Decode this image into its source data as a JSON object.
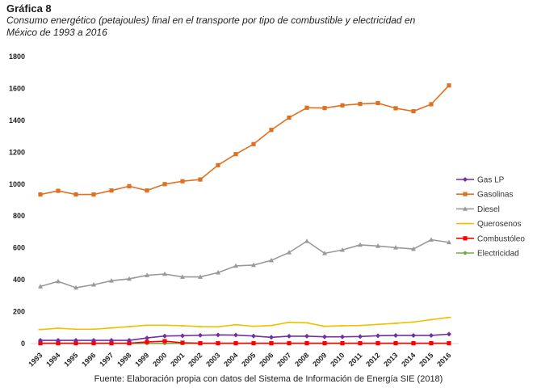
{
  "figure": {
    "label": "Gráfica 8",
    "subtitle_line1": "Consumo energético (petajoules) final en el transporte por tipo de combustible y electricidad en",
    "subtitle_line2": "México de 1993 a 2016",
    "source": "Fuente: Elaboración propia con datos del Sistema de Información de Energía SIE (2018)"
  },
  "chart_data": {
    "type": "line",
    "title": "Consumo energético (petajoules) final en el transporte por tipo de combustible y electricidad en México de 1993 a 2016",
    "xlabel": "",
    "ylabel": "",
    "ylim": [
      0,
      1800
    ],
    "yticks": [
      "0",
      "200",
      "400",
      "600",
      "800",
      "1000",
      "1200",
      "1400",
      "1600",
      "1800"
    ],
    "grid": false,
    "legend_position": "right",
    "categories": [
      "1993",
      "1994",
      "1995",
      "1996",
      "1997",
      "1998",
      "1999",
      "2000",
      "2001",
      "2002",
      "2003",
      "2004",
      "2005",
      "2006",
      "2007",
      "2008",
      "2009",
      "2010",
      "2011",
      "2012",
      "2013",
      "2014",
      "2015",
      "2016"
    ],
    "series": [
      {
        "name": "Gas LP",
        "color": "#7030a0",
        "marker": "diamond",
        "values": [
          20,
          20,
          20,
          20,
          20,
          20,
          35,
          47,
          49,
          52,
          54,
          53,
          47,
          39,
          46,
          46,
          42,
          42,
          44,
          49,
          51,
          51,
          51,
          59
        ]
      },
      {
        "name": "Gasolinas",
        "color": "#e07020",
        "marker": "square",
        "values": [
          935,
          958,
          935,
          935,
          960,
          987,
          960,
          1000,
          1018,
          1029,
          1119,
          1188,
          1251,
          1340,
          1417,
          1479,
          1477,
          1494,
          1503,
          1508,
          1476,
          1457,
          1501,
          1619
        ]
      },
      {
        "name": "Diesel",
        "color": "#999999",
        "marker": "triangle",
        "values": [
          358,
          390,
          350,
          369,
          394,
          406,
          428,
          436,
          418,
          418,
          445,
          487,
          492,
          522,
          571,
          642,
          566,
          587,
          619,
          612,
          602,
          593,
          651,
          635
        ]
      },
      {
        "name": "Querosenos",
        "color": "#f0c000",
        "marker": "dash",
        "values": [
          88,
          96,
          90,
          90,
          98,
          106,
          115,
          115,
          112,
          106,
          105,
          118,
          108,
          113,
          133,
          130,
          108,
          112,
          113,
          120,
          127,
          135,
          150,
          164
        ]
      },
      {
        "name": "Combustóleo",
        "color": "#ff0000",
        "marker": "square",
        "values": [
          2,
          2,
          2,
          2,
          2,
          2,
          10,
          15,
          5,
          2,
          2,
          2,
          2,
          2,
          2,
          2,
          2,
          2,
          2,
          2,
          2,
          2,
          2,
          2
        ]
      },
      {
        "name": "Electricidad",
        "color": "#70ad47",
        "marker": "circle",
        "values": [
          1,
          1,
          1,
          1,
          1,
          1,
          1,
          1,
          1,
          1,
          1,
          1,
          1,
          1,
          1,
          1,
          1,
          1,
          1,
          1,
          1,
          1,
          1,
          1
        ]
      }
    ]
  }
}
